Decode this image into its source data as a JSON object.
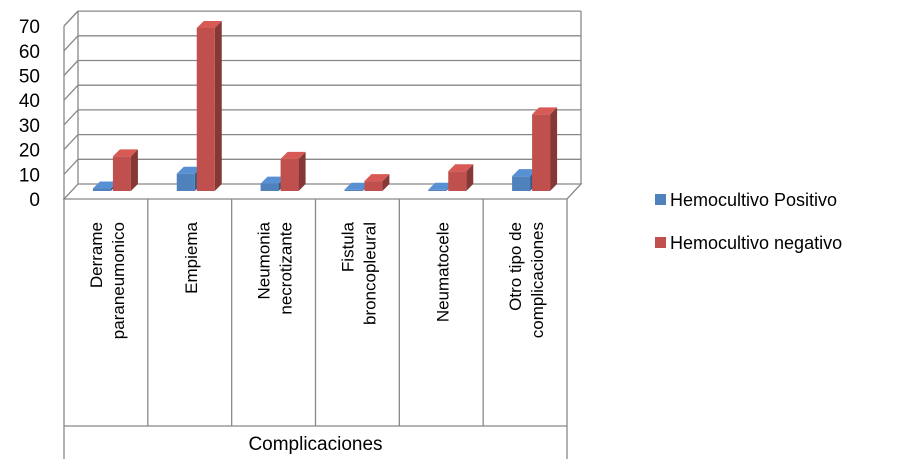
{
  "chart_data": {
    "type": "bar",
    "style": "3d-clustered-column",
    "categories": [
      [
        "Derrame",
        "paraneumonico"
      ],
      [
        "Empiema"
      ],
      [
        "Neumonia",
        "necrotizante"
      ],
      [
        "Fistula",
        "broncopleural"
      ],
      [
        "Neumatocele"
      ],
      [
        "Otro tipo de",
        "complicaciones"
      ]
    ],
    "series": [
      {
        "name": "Hemocultivo Positivo",
        "color": "#4f81bd",
        "values": [
          1,
          7,
          3,
          0.5,
          0.5,
          6
        ]
      },
      {
        "name": "Hemocultivo negativo",
        "color": "#c0504d",
        "values": [
          14,
          66,
          13,
          4,
          8,
          31
        ]
      }
    ],
    "yticks": [
      "0",
      "10",
      "20",
      "30",
      "40",
      "50",
      "60",
      "70"
    ],
    "ylim": [
      0,
      70
    ],
    "xlabel": "Complicaciones",
    "ylabel": "",
    "grid": true,
    "legend_position": "right"
  }
}
